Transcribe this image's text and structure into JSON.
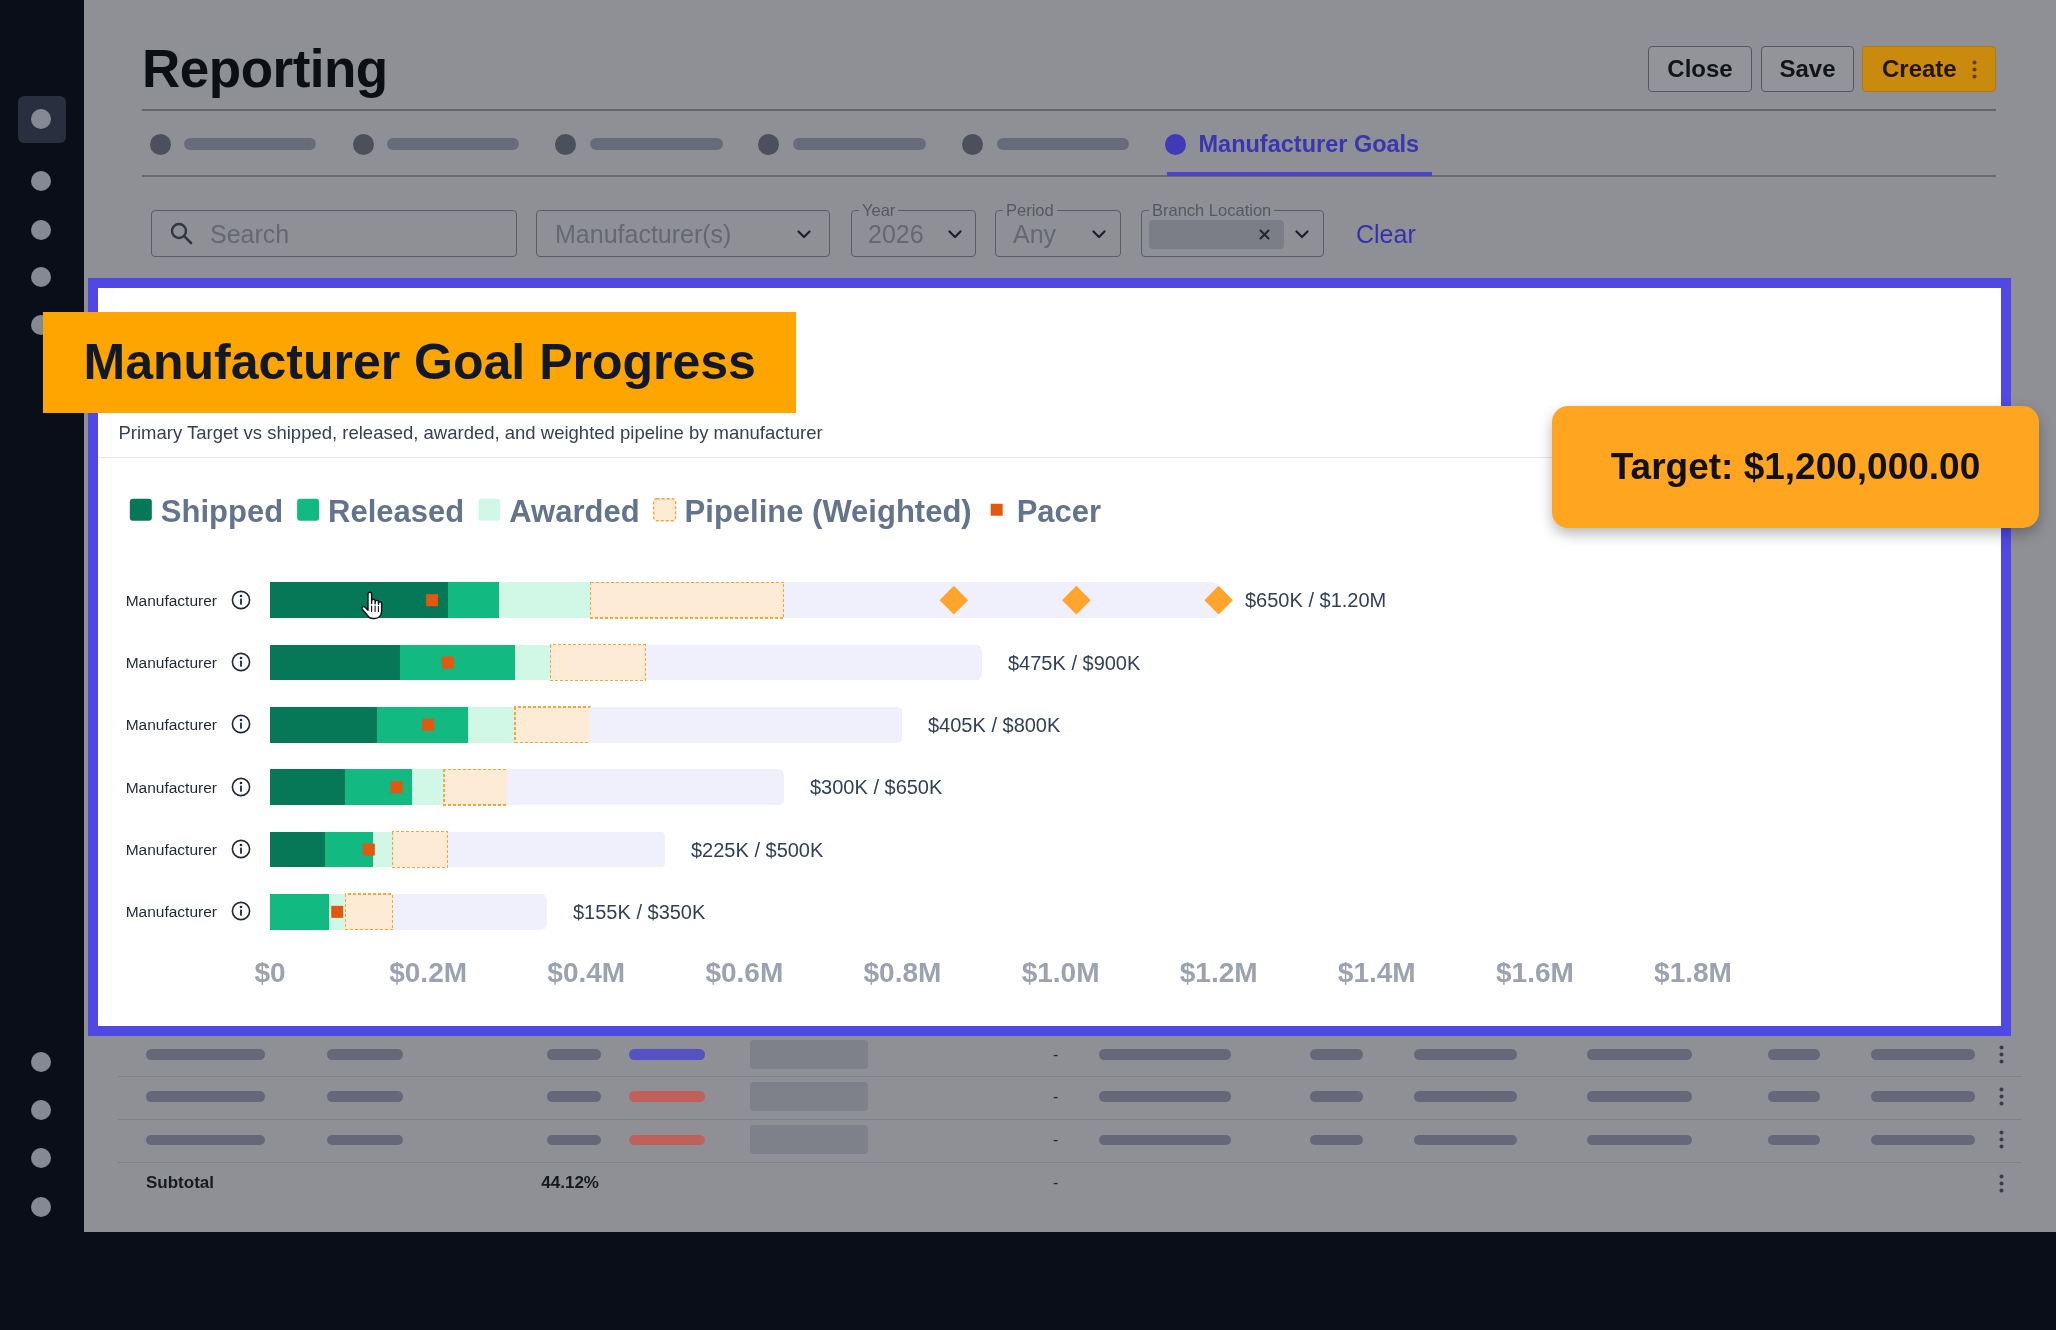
{
  "chart_data": [
    {
      "type": "other",
      "title": "Reporting",
      "annotations": [
        "Close",
        "Save",
        "Create",
        "Manufacturer Goals",
        "Search",
        "Manufacturer(s)",
        "Year",
        "2026",
        "Period",
        "Any",
        "Branch Location",
        "Clear"
      ]
    },
    {
      "type": "bar",
      "orientation": "horizontal",
      "stacked": true,
      "title": "Manufacturer Goal Progress",
      "subtitle": "Primary Target vs shipped, released, awarded, and weighted pipeline by manufacturer",
      "categories": [
        "Manufacturer",
        "Manufacturer",
        "Manufacturer",
        "Manufacturer",
        "Manufacturer",
        "Manufacturer"
      ],
      "series": [
        {
          "name": "Shipped",
          "color": "#077857",
          "values": [
            0.225,
            0.165,
            0.135,
            0.095,
            0.07,
            0
          ]
        },
        {
          "name": "Released",
          "color": "#12b981",
          "values": [
            0.065,
            0.145,
            0.115,
            0.085,
            0.06,
            0.075
          ]
        },
        {
          "name": "Awarded",
          "color": "#d1f7e6",
          "values": [
            0.115,
            0.045,
            0.06,
            0.04,
            0.025,
            0.02
          ]
        },
        {
          "name": "Pipeline (Weighted)",
          "color": "#feebd5",
          "line_style": "dashed",
          "values": [
            0.245,
            0.12,
            0.095,
            0.08,
            0.07,
            0.06
          ]
        },
        {
          "color": "#f0effc",
          "values": [
            0.55,
            0.425,
            0.395,
            0.35,
            0.275,
            0.195
          ]
        },
        {
          "type": "scatter",
          "name": "Pacer",
          "color": "#e4570e",
          "marker": "square",
          "values": [
            0.205,
            0.225,
            0.2,
            0.16,
            0.125,
            0.085
          ]
        },
        {
          "type": "scatter",
          "color": "#ffa52b",
          "marker": "diamond",
          "values": [
            0.865,
            null,
            null,
            null,
            null,
            null
          ]
        },
        {
          "type": "scatter",
          "color": "#ffa52b",
          "marker": "diamond",
          "values": [
            1.02,
            null,
            null,
            null,
            null,
            null
          ]
        },
        {
          "type": "scatter",
          "color": "#ffa52b",
          "marker": "diamond",
          "values": [
            1.2,
            null,
            null,
            null,
            null,
            null
          ]
        }
      ],
      "totals": [
        "$650K / $1.20M",
        "$475K / $900K",
        "$405K / $800K",
        "$300K / $650K",
        "$225K / $500K",
        "$155K / $350K"
      ],
      "xlim": [
        0,
        1.8
      ],
      "xticks": [
        {
          "value": 0,
          "label": "$0"
        },
        {
          "value": 0.2,
          "label": "$0.2M"
        },
        {
          "value": 0.4,
          "label": "$0.4M"
        },
        {
          "value": 0.6,
          "label": "$0.6M"
        },
        {
          "value": 0.8,
          "label": "$0.8M"
        },
        {
          "value": 1.0,
          "label": "$1.0M"
        },
        {
          "value": 1.2,
          "label": "$1.2M"
        },
        {
          "value": 1.4,
          "label": "$1.4M"
        },
        {
          "value": 1.6,
          "label": "$1.6M"
        },
        {
          "value": 1.8,
          "label": "$1.8M"
        }
      ],
      "legend": "top left",
      "annotations": [
        "Target: $1,200,000.00"
      ]
    },
    {
      "type": "other",
      "annotations": [
        "-",
        "-",
        "-",
        "Subtotal",
        "44.12%",
        "-"
      ]
    }
  ]
}
